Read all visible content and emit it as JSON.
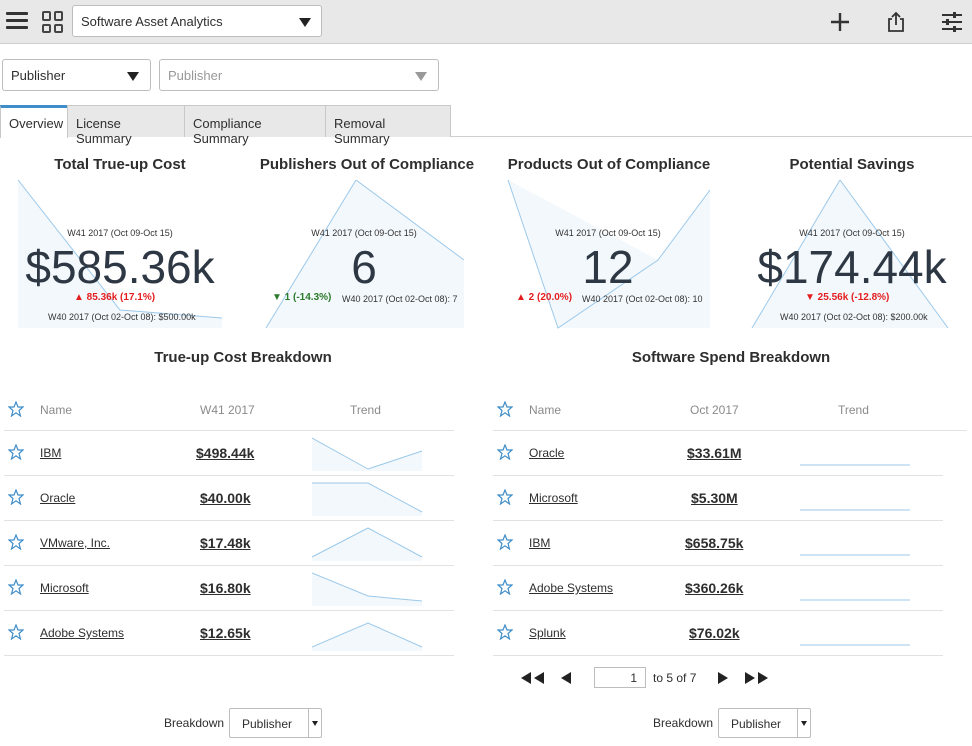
{
  "header": {
    "dashboard_select": "Software Asset Analytics",
    "icons": [
      "menu-icon",
      "dashboards-icon",
      "add-icon",
      "share-icon",
      "filter-settings-icon"
    ]
  },
  "filters": {
    "publisher_select": "Publisher",
    "publisher_value_placeholder": "Publisher"
  },
  "tabs": [
    {
      "label": "Overview",
      "active": true
    },
    {
      "label": "License Summary"
    },
    {
      "label": "Compliance Summary"
    },
    {
      "label": "Removal Summary"
    }
  ],
  "kpis": [
    {
      "title": "Total True-up Cost",
      "period": "W41 2017 (Oct 09-Oct 15)",
      "value": "$585.36k",
      "change": "▲ 85.36k (17.1%)",
      "direction": "up",
      "previous": "W40 2017 (Oct 02-Oct 08): $500.00k"
    },
    {
      "title": "Publishers Out of Compliance",
      "period": "W41 2017 (Oct 09-Oct 15)",
      "value": "6",
      "change": "▼ 1 (-14.3%)",
      "direction": "down",
      "previous": "W40 2017 (Oct 02-Oct 08): 7"
    },
    {
      "title": "Products Out of Compliance",
      "period": "W41 2017 (Oct 09-Oct 15)",
      "value": "12",
      "change": "▲ 2 (20.0%)",
      "direction": "up",
      "previous": "W40 2017 (Oct 02-Oct 08): 10"
    },
    {
      "title": "Potential Savings",
      "period": "W41 2017 (Oct 09-Oct 15)",
      "value": "$174.44k",
      "change": "▼ 25.56k (-12.8%)",
      "direction": "up",
      "previous": "W40 2017 (Oct 02-Oct 08): $200.00k"
    }
  ],
  "trueup": {
    "title": "True-up Cost Breakdown",
    "headers": {
      "name": "Name",
      "value": "W41 2017",
      "trend": "Trend"
    },
    "rows": [
      {
        "name": "IBM",
        "value": "$498.44k"
      },
      {
        "name": "Oracle",
        "value": "$40.00k"
      },
      {
        "name": "VMware, Inc.",
        "value": "$17.48k"
      },
      {
        "name": "Microsoft",
        "value": "$16.80k"
      },
      {
        "name": "Adobe Systems",
        "value": "$12.65k"
      }
    ]
  },
  "spend": {
    "title": "Software Spend Breakdown",
    "headers": {
      "name": "Name",
      "value": "Oct 2017",
      "trend": "Trend"
    },
    "rows": [
      {
        "name": "Oracle",
        "value": "$33.61M"
      },
      {
        "name": "Microsoft",
        "value": "$5.30M"
      },
      {
        "name": "IBM",
        "value": "$658.75k"
      },
      {
        "name": "Adobe Systems",
        "value": "$360.26k"
      },
      {
        "name": "Splunk",
        "value": "$76.02k"
      }
    ]
  },
  "pager": {
    "page": "1",
    "of_text": "to 5 of 7"
  },
  "breakdown": {
    "label": "Breakdown",
    "left_value": "Publisher",
    "right_value": "Publisher"
  }
}
